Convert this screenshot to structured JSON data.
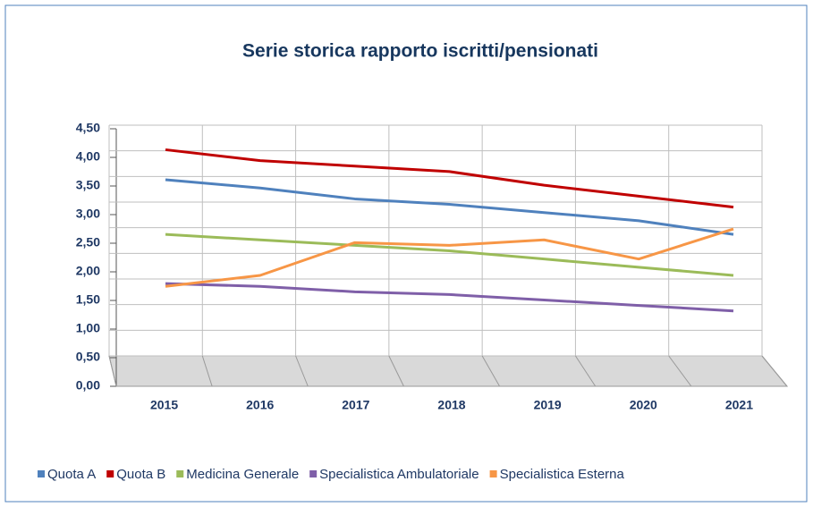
{
  "chart_data": {
    "type": "line",
    "title": "Serie storica rapporto iscritti/pensionati",
    "categories": [
      "2015",
      "2016",
      "2017",
      "2018",
      "2019",
      "2020",
      "2021"
    ],
    "series": [
      {
        "name": "Quota A",
        "color": "#4f81bd",
        "values": [
          3.55,
          3.4,
          3.2,
          3.1,
          2.95,
          2.8,
          2.55
        ]
      },
      {
        "name": "Quota B",
        "color": "#c00000",
        "values": [
          4.1,
          3.9,
          3.8,
          3.7,
          3.45,
          3.25,
          3.05
        ]
      },
      {
        "name": "Medicina Generale",
        "color": "#9bbb59",
        "values": [
          2.55,
          2.45,
          2.35,
          2.25,
          2.1,
          1.95,
          1.8
        ]
      },
      {
        "name": "Specialistica Ambulatoriale",
        "color": "#7f5fa8",
        "values": [
          1.65,
          1.6,
          1.5,
          1.45,
          1.35,
          1.25,
          1.15
        ]
      },
      {
        "name": "Specialistica Esterna",
        "color": "#f79646",
        "values": [
          1.6,
          1.8,
          2.4,
          2.35,
          2.45,
          2.1,
          2.65
        ]
      }
    ],
    "ylim": [
      0,
      4.5
    ],
    "yticks": [
      {
        "value": 0,
        "label": "0,00"
      },
      {
        "value": 0.5,
        "label": "0,50"
      },
      {
        "value": 1,
        "label": "1,00"
      },
      {
        "value": 1.5,
        "label": "1,50"
      },
      {
        "value": 2,
        "label": "2,00"
      },
      {
        "value": 2.5,
        "label": "2,50"
      },
      {
        "value": 3,
        "label": "3,00"
      },
      {
        "value": 3.5,
        "label": "3,50"
      },
      {
        "value": 4,
        "label": "4,00"
      },
      {
        "value": 4.5,
        "label": "4,50"
      }
    ],
    "grid": true,
    "legend": "bottom"
  }
}
